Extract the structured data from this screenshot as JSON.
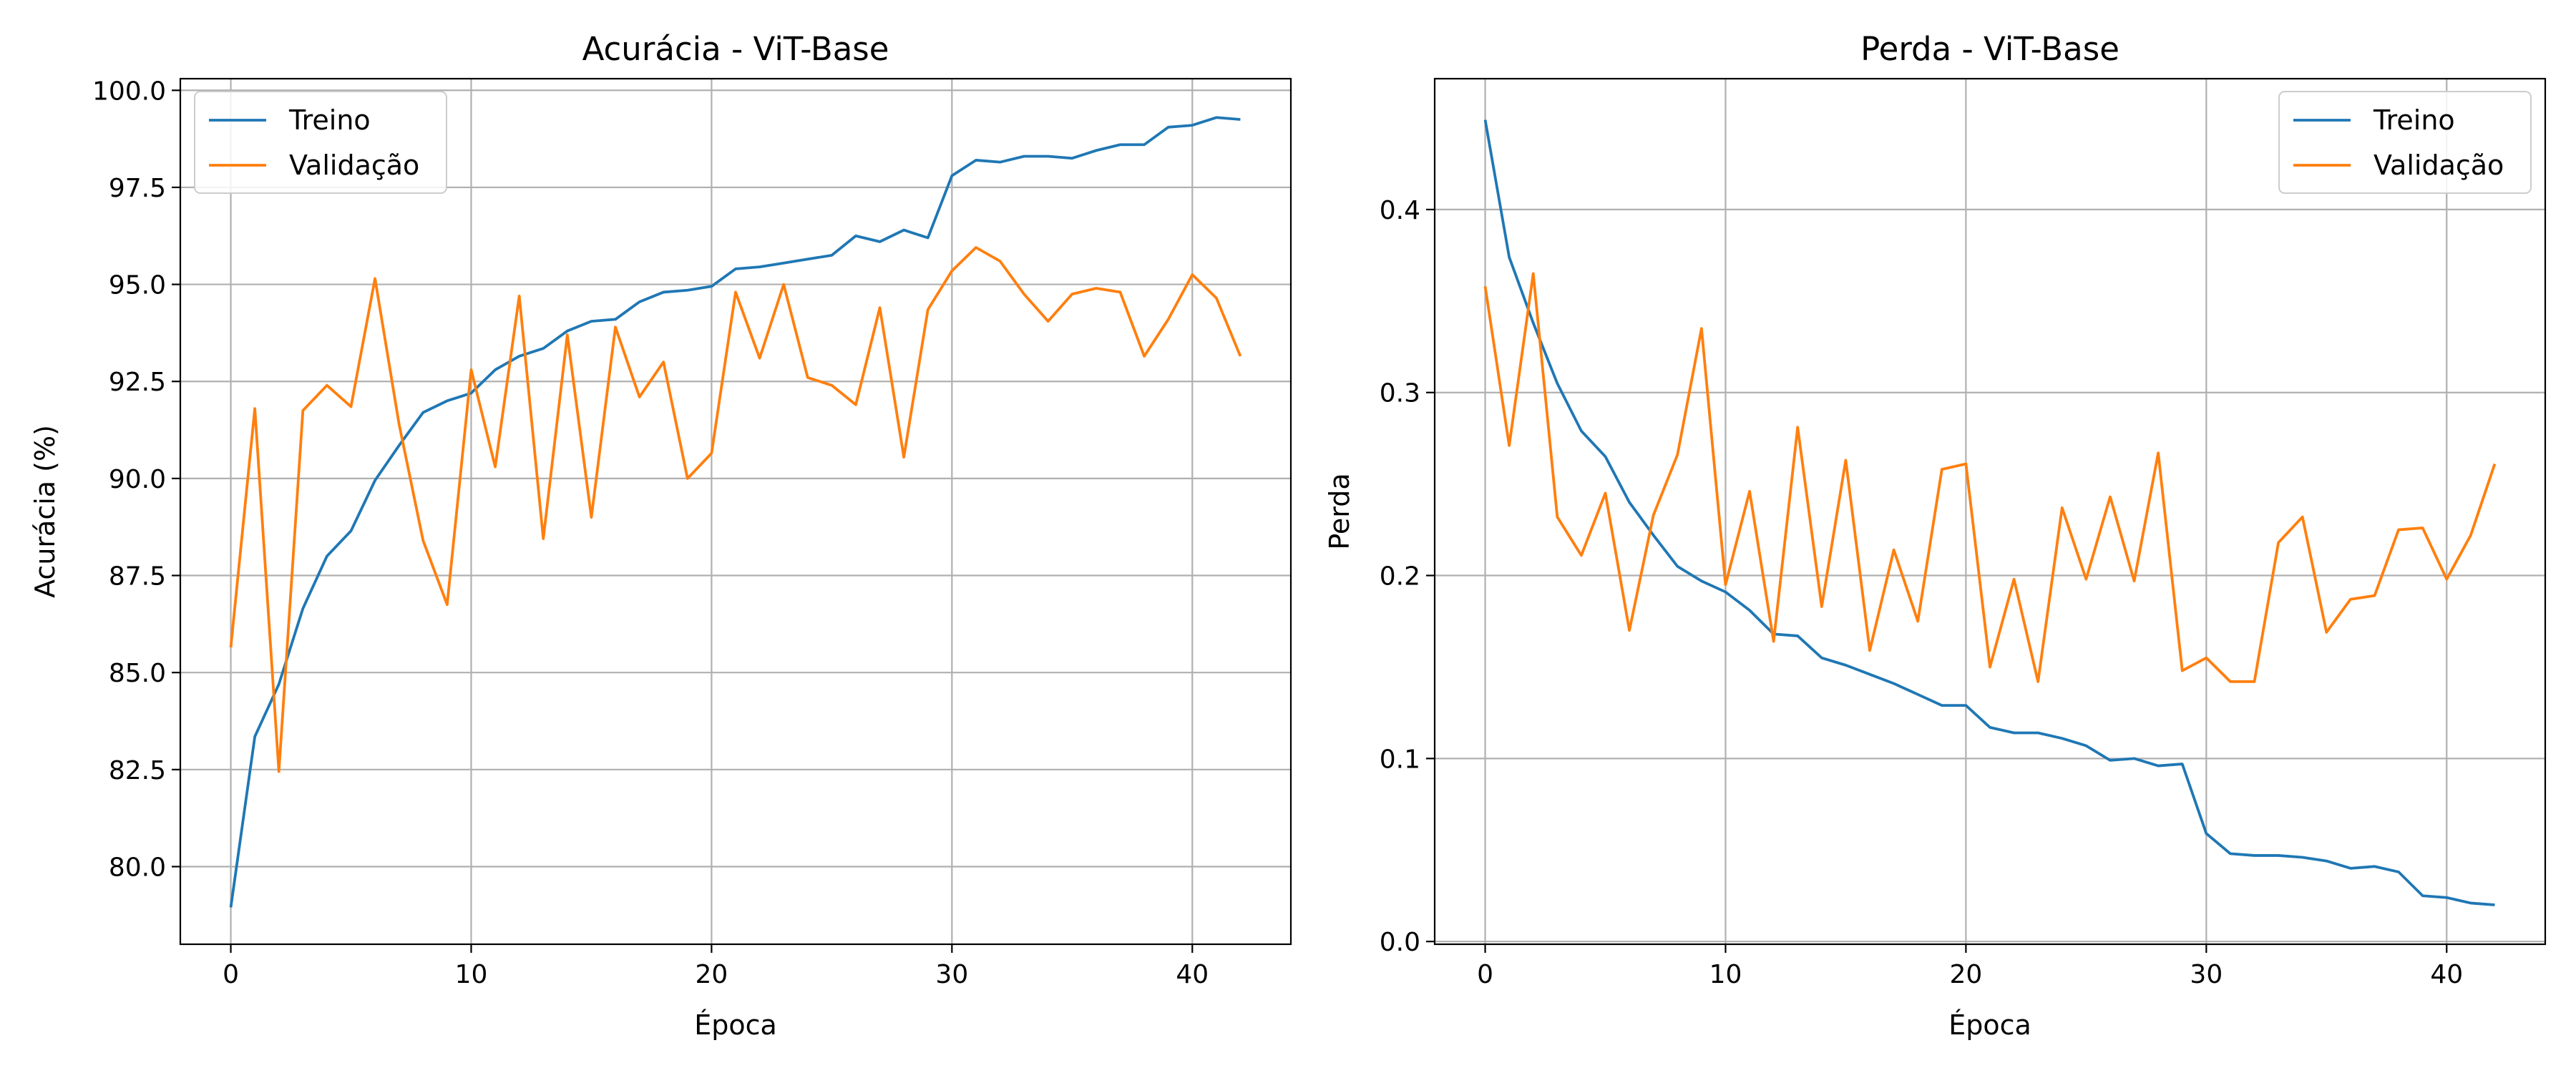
{
  "colors": {
    "treino": "#1f77b4",
    "validacao": "#ff7f0e",
    "grid": "#b0b0b0"
  },
  "chart_data": [
    {
      "type": "line",
      "title": "Acurácia - ViT-Base",
      "xlabel": "Época",
      "ylabel": "Acurácia (%)",
      "xlim": [
        -2.1,
        44.1
      ],
      "ylim": [
        78.0,
        100.3
      ],
      "xticks": [
        0,
        10,
        20,
        30,
        40
      ],
      "xtick_labels": [
        "0",
        "10",
        "20",
        "30",
        "40"
      ],
      "yticks": [
        80.0,
        82.5,
        85.0,
        87.5,
        90.0,
        92.5,
        95.0,
        97.5,
        100.0
      ],
      "ytick_labels": [
        "80.0",
        "82.5",
        "85.0",
        "87.5",
        "90.0",
        "92.5",
        "95.0",
        "97.5",
        "100.0"
      ],
      "grid": true,
      "legend_position": "top-left",
      "x": [
        0,
        1,
        2,
        3,
        4,
        5,
        6,
        7,
        8,
        9,
        10,
        11,
        12,
        13,
        14,
        15,
        16,
        17,
        18,
        19,
        20,
        21,
        22,
        23,
        24,
        25,
        26,
        27,
        28,
        29,
        30,
        31,
        32,
        33,
        34,
        35,
        36,
        37,
        38,
        39,
        40,
        41,
        42
      ],
      "series": [
        {
          "name": "Treino",
          "color": "#1f77b4",
          "values": [
            78.95,
            83.35,
            84.7,
            86.65,
            88.0,
            88.65,
            89.95,
            90.85,
            91.7,
            92.0,
            92.2,
            92.8,
            93.15,
            93.35,
            93.8,
            94.05,
            94.1,
            94.55,
            94.8,
            94.85,
            94.95,
            95.4,
            95.45,
            95.55,
            95.65,
            95.75,
            96.25,
            96.1,
            96.4,
            96.2,
            97.8,
            98.2,
            98.15,
            98.3,
            98.3,
            98.25,
            98.45,
            98.6,
            98.6,
            99.05,
            99.1,
            99.3,
            99.25
          ]
        },
        {
          "name": "Validação",
          "color": "#ff7f0e",
          "values": [
            85.65,
            91.8,
            82.45,
            91.75,
            92.4,
            91.85,
            95.15,
            91.4,
            88.4,
            86.75,
            92.8,
            90.3,
            94.7,
            88.45,
            93.7,
            89.0,
            93.9,
            92.1,
            93.0,
            90.0,
            90.65,
            94.8,
            93.1,
            95.0,
            92.6,
            92.4,
            91.9,
            94.4,
            90.55,
            94.35,
            95.35,
            95.95,
            95.6,
            94.75,
            94.05,
            94.75,
            94.9,
            94.8,
            93.15,
            94.1,
            95.25,
            94.65,
            93.15
          ]
        }
      ]
    },
    {
      "type": "line",
      "title": "Perda - ViT-Base",
      "xlabel": "Época",
      "ylabel": "Perda",
      "xlim": [
        -2.1,
        44.1
      ],
      "ylim": [
        -0.0015,
        0.4715
      ],
      "xticks": [
        0,
        10,
        20,
        30,
        40
      ],
      "xtick_labels": [
        "0",
        "10",
        "20",
        "30",
        "40"
      ],
      "yticks": [
        0.0,
        0.1,
        0.2,
        0.3,
        0.4
      ],
      "ytick_labels": [
        "0.0",
        "0.1",
        "0.2",
        "0.3",
        "0.4"
      ],
      "grid": true,
      "legend_position": "top-right",
      "x": [
        0,
        1,
        2,
        3,
        4,
        5,
        6,
        7,
        8,
        9,
        10,
        11,
        12,
        13,
        14,
        15,
        16,
        17,
        18,
        19,
        20,
        21,
        22,
        23,
        24,
        25,
        26,
        27,
        28,
        29,
        30,
        31,
        32,
        33,
        34,
        35,
        36,
        37,
        38,
        39,
        40,
        41,
        42
      ],
      "series": [
        {
          "name": "Treino",
          "color": "#1f77b4",
          "values": [
            0.449,
            0.374,
            0.338,
            0.305,
            0.279,
            0.265,
            0.24,
            0.222,
            0.205,
            0.197,
            0.191,
            0.181,
            0.168,
            0.167,
            0.155,
            0.151,
            0.146,
            0.141,
            0.135,
            0.129,
            0.129,
            0.117,
            0.114,
            0.114,
            0.111,
            0.107,
            0.099,
            0.1,
            0.096,
            0.097,
            0.059,
            0.048,
            0.047,
            0.047,
            0.046,
            0.044,
            0.04,
            0.041,
            0.038,
            0.025,
            0.024,
            0.021,
            0.02
          ]
        },
        {
          "name": "Validação",
          "color": "#ff7f0e",
          "values": [
            0.358,
            0.271,
            0.365,
            0.232,
            0.211,
            0.245,
            0.17,
            0.233,
            0.266,
            0.335,
            0.195,
            0.246,
            0.164,
            0.281,
            0.183,
            0.263,
            0.159,
            0.214,
            0.175,
            0.258,
            0.261,
            0.15,
            0.198,
            0.142,
            0.237,
            0.198,
            0.243,
            0.197,
            0.267,
            0.148,
            0.155,
            0.142,
            0.142,
            0.218,
            0.232,
            0.169,
            0.187,
            0.189,
            0.225,
            0.226,
            0.198,
            0.222,
            0.261
          ]
        }
      ]
    }
  ]
}
